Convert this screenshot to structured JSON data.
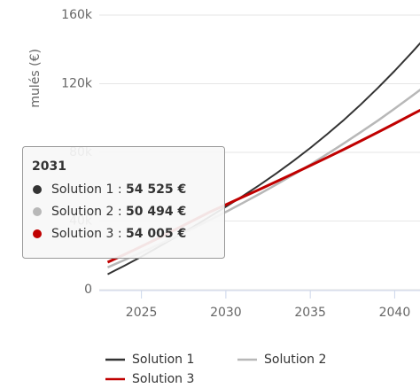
{
  "chart_data": {
    "type": "line",
    "y_axis_label": "mulés (€)",
    "x": [
      2023,
      2024,
      2025,
      2026,
      2027,
      2028,
      2029,
      2030,
      2031,
      2032,
      2033,
      2034,
      2035,
      2036,
      2037,
      2038,
      2039,
      2040,
      2041,
      2042
    ],
    "series": [
      {
        "name": "Solution 1",
        "color": "#333333",
        "values": [
          9000,
          14000,
          19200,
          24800,
          30500,
          36300,
          42200,
          48300,
          54525,
          61000,
          67800,
          75000,
          82600,
          90600,
          99000,
          108000,
          117500,
          127500,
          138000,
          149000
        ]
      },
      {
        "name": "Solution 2",
        "color": "#b8b8b8",
        "values": [
          13000,
          17300,
          21700,
          26200,
          30800,
          35500,
          40300,
          45300,
          50494,
          55800,
          61300,
          67000,
          72900,
          79000,
          85300,
          91800,
          98500,
          105500,
          112700,
          120000
        ]
      },
      {
        "name": "Solution 3",
        "color": "#c00000",
        "values": [
          16000,
          20500,
          25200,
          30000,
          35000,
          40000,
          45000,
          49500,
          54005,
          58500,
          63000,
          67600,
          72300,
          77000,
          81800,
          86700,
          91700,
          96800,
          102000,
          107000
        ]
      }
    ],
    "xlim": [
      2022.5,
      2041.5
    ],
    "xticks": [
      2025,
      2030,
      2035,
      2040
    ],
    "ylim": [
      0,
      160000
    ],
    "yticks": [
      {
        "value": 0,
        "label": "0"
      },
      {
        "value": 40000,
        "label": "40k"
      },
      {
        "value": 80000,
        "label": "80k"
      },
      {
        "value": 120000,
        "label": "120k"
      },
      {
        "value": 160000,
        "label": "160k"
      }
    ],
    "grid": true,
    "legend": "bottom",
    "tooltip": {
      "index": 8,
      "separator": " : ",
      "value_labels": [
        "54 525 €",
        "50 494 €",
        "54 005 €"
      ]
    }
  }
}
